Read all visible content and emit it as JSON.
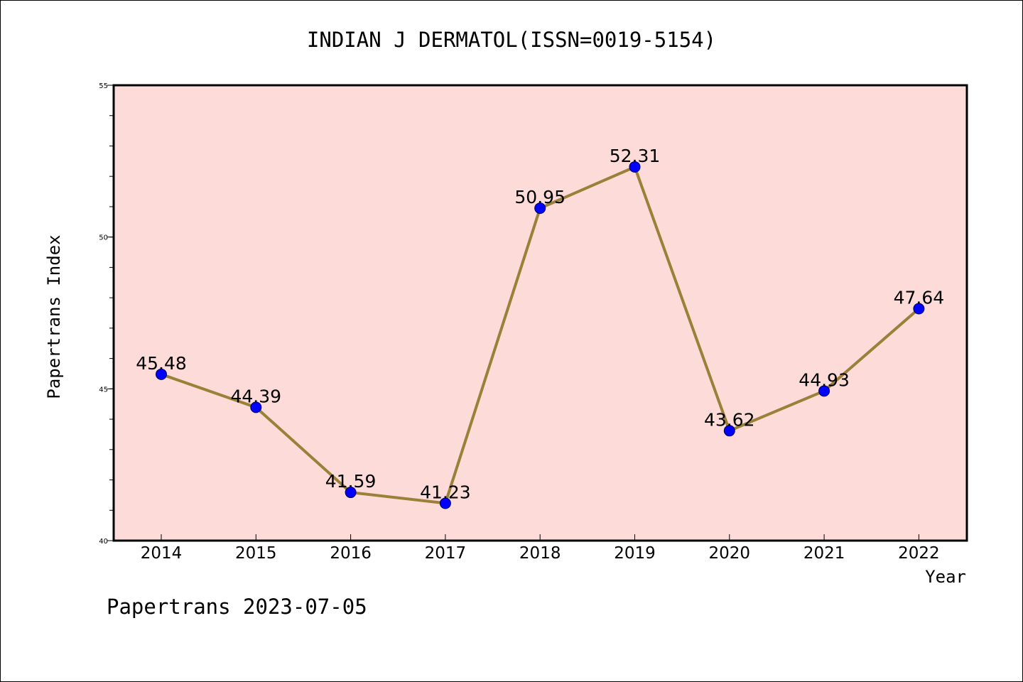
{
  "chart_data": {
    "type": "line",
    "title": "INDIAN J DERMATOL(ISSN=0019-5154)",
    "xlabel": "Year",
    "ylabel": "Papertrans Index",
    "categories": [
      "2014",
      "2015",
      "2016",
      "2017",
      "2018",
      "2019",
      "2020",
      "2021",
      "2022"
    ],
    "series": [
      {
        "values": [
          45.48,
          44.39,
          41.59,
          41.23,
          50.95,
          52.31,
          43.62,
          44.93,
          47.64
        ],
        "labels": [
          "45.48",
          "44.39",
          "41.59",
          "41.23",
          "50.95",
          "52.31",
          "43.62",
          "44.93",
          "47.64"
        ]
      }
    ],
    "ylim": [
      40,
      55
    ],
    "yticks": [
      "40",
      "45",
      "50",
      "55"
    ],
    "grid": false,
    "legend": "none",
    "colors": {
      "plot_background": "#fddbd8",
      "line": "#9a8038",
      "marker": "#0000ff",
      "marker_edge": "#00005a",
      "axes": "#000000"
    }
  },
  "footer": {
    "text": "Papertrans 2023-07-05"
  }
}
